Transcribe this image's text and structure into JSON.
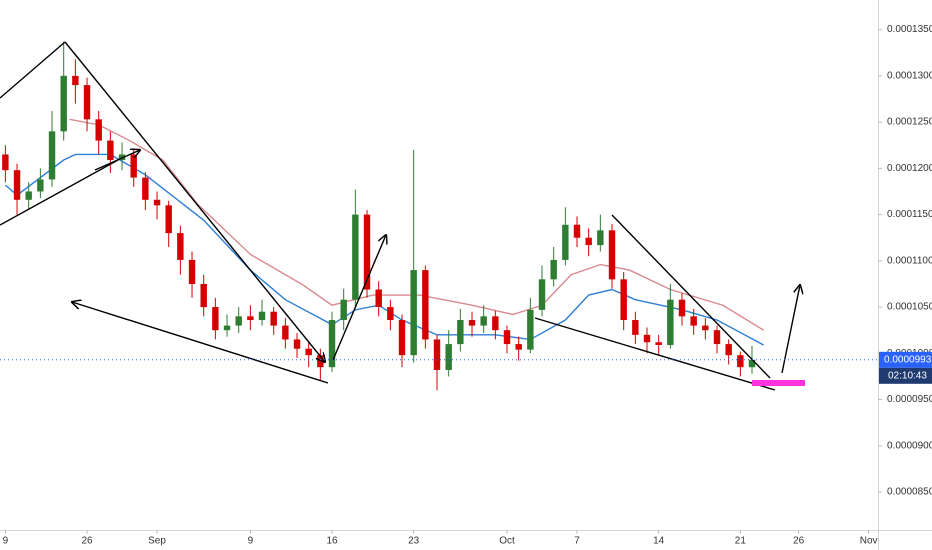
{
  "chart_data": {
    "type": "candlestick",
    "x": [
      0,
      1,
      2,
      3,
      4,
      5,
      6,
      7,
      8,
      9,
      10,
      11,
      12,
      13,
      14,
      15,
      16,
      17,
      18,
      19,
      20,
      21,
      22,
      23,
      24,
      25,
      26,
      27,
      28,
      29,
      30,
      31,
      32,
      33,
      34,
      35,
      36,
      37,
      38,
      39,
      40,
      41,
      42,
      43,
      44,
      45,
      46,
      47,
      48,
      49,
      50,
      51,
      52,
      53,
      54,
      55,
      56,
      57,
      58,
      59,
      60,
      61,
      62,
      63,
      64
    ],
    "open": [
      0.0001215,
      0.0001198,
      0.0001166,
      0.0001175,
      0.0001188,
      0.000124,
      0.00013,
      0.000129,
      0.0001253,
      0.000123,
      0.0001209,
      0.0001215,
      0.000119,
      0.0001166,
      0.000116,
      0.000113,
      0.0001101,
      0.0001075,
      0.000105,
      0.0001025,
      0.000103,
      0.000104,
      0.0001036,
      0.0001045,
      0.000103,
      0.0001015,
      0.0001005,
      9.98e-05,
      9.85e-05,
      0.0001036,
      0.0001058,
      0.000115,
      0.0001069,
      0.000105,
      0.0001036,
      9.98e-05,
      0.000109,
      0.0001015,
      9.82e-05,
      0.000101,
      0.0001036,
      0.000103,
      0.000104,
      0.0001025,
      0.000101,
      0.0001004,
      0.0001047,
      0.000108,
      0.0001101,
      0.0001139,
      0.0001125,
      0.0001117,
      0.0001133,
      0.000108,
      0.0001036,
      0.000102,
      0.0001012,
      0.0001009,
      0.0001058,
      0.000104,
      0.000103,
      0.0001025,
      0.000101,
      9.98e-05,
      9.85e-05
    ],
    "high": [
      0.0001225,
      0.0001205,
      0.0001185,
      0.00012,
      0.0001262,
      0.0001337,
      0.0001318,
      0.0001298,
      0.0001262,
      0.000124,
      0.0001228,
      0.000122,
      0.0001196,
      0.0001175,
      0.0001165,
      0.0001138,
      0.000111,
      0.0001085,
      0.000106,
      0.0001042,
      0.000105,
      0.0001052,
      0.0001058,
      0.000105,
      0.0001038,
      0.0001022,
      0.0001012,
      0.0001005,
      0.0001045,
      0.000107,
      0.0001177,
      0.0001155,
      0.0001078,
      0.0001058,
      0.0001042,
      0.000122,
      0.0001095,
      0.000102,
      0.0001025,
      0.0001048,
      0.0001045,
      0.0001052,
      0.0001046,
      0.000103,
      0.0001018,
      0.000106,
      0.0001095,
      0.0001115,
      0.0001158,
      0.0001148,
      0.0001135,
      0.000115,
      0.000114,
      0.0001088,
      0.0001045,
      0.0001028,
      0.000102,
      0.0001075,
      0.0001065,
      0.0001048,
      0.0001038,
      0.000103,
      0.0001015,
      0.0001002,
      0.0001008
    ],
    "low": [
      0.0001185,
      0.000115,
      0.0001155,
      0.0001168,
      0.000118,
      0.000123,
      0.000127,
      0.000124,
      0.0001215,
      0.0001195,
      0.0001198,
      0.000118,
      0.0001155,
      0.0001145,
      0.0001115,
      0.0001085,
      0.000106,
      0.000104,
      0.0001015,
      0.0001018,
      0.0001022,
      0.0001025,
      0.000103,
      0.000102,
      0.0001005,
      9.95e-05,
      9.85e-05,
      9.71e-05,
      9.8e-05,
      0.0001025,
      0.000105,
      0.000106,
      0.000104,
      0.0001025,
      9.85e-05,
      9.9e-05,
      0.0001005,
      9.6e-05,
      9.75e-05,
      0.0001002,
      0.0001018,
      0.0001022,
      0.0001015,
      0.0001,
      9.92e-05,
      0.0001,
      0.000104,
      0.0001072,
      0.0001095,
      0.0001115,
      0.0001105,
      0.000111,
      0.000107,
      0.0001025,
      0.000101,
      0.0001,
      9.98e-05,
      0.0001005,
      0.000103,
      0.000102,
      0.0001015,
      0.0001,
      9.88e-05,
      9.75e-05,
      9.78e-05
    ],
    "close": [
      0.0001198,
      0.0001166,
      0.0001175,
      0.0001188,
      0.000124,
      0.00013,
      0.000129,
      0.0001253,
      0.000123,
      0.0001209,
      0.0001215,
      0.000119,
      0.0001166,
      0.000116,
      0.000113,
      0.0001101,
      0.0001075,
      0.000105,
      0.0001025,
      0.000103,
      0.000104,
      0.0001036,
      0.0001045,
      0.000103,
      0.0001015,
      0.0001005,
      9.98e-05,
      9.85e-05,
      0.0001036,
      0.0001058,
      0.000115,
      0.0001069,
      0.000105,
      0.0001036,
      9.98e-05,
      0.000109,
      0.0001015,
      9.82e-05,
      0.000101,
      0.0001036,
      0.000103,
      0.000104,
      0.0001025,
      0.000101,
      0.0001004,
      0.0001047,
      0.000108,
      0.0001101,
      0.0001139,
      0.0001125,
      0.0001117,
      0.0001133,
      0.000108,
      0.0001036,
      0.000102,
      0.0001012,
      0.0001009,
      0.0001058,
      0.000104,
      0.000103,
      0.0001025,
      0.000101,
      9.98e-05,
      9.85e-05,
      9.93e-05
    ],
    "up_color": "#2e7d32",
    "down_color": "#d50000",
    "moving_averages": [
      {
        "color": "#d98a8f",
        "x": [
          5.5,
          8,
          10.5,
          13.5,
          16.5,
          21,
          25.5,
          28,
          31.5,
          35.5,
          40,
          43.5,
          46,
          48.5,
          51,
          53.5,
          57,
          61.5,
          65
        ],
        "values": [
          0.0001253,
          0.0001247,
          0.0001231,
          0.0001209,
          0.0001161,
          0.0001107,
          0.0001074,
          0.0001052,
          0.0001063,
          0.0001063,
          0.0001052,
          0.0001042,
          0.0001052,
          0.0001085,
          0.0001096,
          0.000109,
          0.0001069,
          0.0001052,
          0.0001025
        ]
      },
      {
        "color": "#2f7fd6",
        "x": [
          0,
          1,
          5,
          6,
          9,
          12,
          17,
          21,
          24,
          28,
          30,
          32,
          34,
          37,
          42,
          45,
          48,
          50,
          52,
          54,
          58,
          61,
          65
        ],
        "values": [
          0.0001182,
          0.0001171,
          0.0001209,
          0.0001215,
          0.0001215,
          0.0001193,
          0.0001144,
          0.000109,
          0.0001058,
          0.0001031,
          0.0001047,
          0.0001052,
          0.0001036,
          0.000102,
          0.000102,
          0.0001015,
          0.0001036,
          0.0001063,
          0.0001069,
          0.0001058,
          0.0001047,
          0.0001036,
          0.0001009
        ]
      }
    ],
    "xlim": [
      -0.46,
      74.8
    ],
    "xticks": [
      {
        "value": 0,
        "label": "9"
      },
      {
        "value": 7,
        "label": "26"
      },
      {
        "value": 13,
        "label": "Sep"
      },
      {
        "value": 21,
        "label": "9"
      },
      {
        "value": 28,
        "label": "16"
      },
      {
        "value": 35,
        "label": "23"
      },
      {
        "value": 43,
        "label": "Oct"
      },
      {
        "value": 49,
        "label": "7"
      },
      {
        "value": 56,
        "label": "14"
      },
      {
        "value": 63,
        "label": "21"
      },
      {
        "value": 68,
        "label": "26"
      },
      {
        "value": 74,
        "label": "Nov"
      }
    ],
    "ylim": [
      8.09e-05,
      0.0001382
    ],
    "yticks": [
      {
        "value": 8.5e-05,
        "label": "0.0000850"
      },
      {
        "value": 9e-05,
        "label": "0.0000900"
      },
      {
        "value": 9.5e-05,
        "label": "0.0000950"
      },
      {
        "value": 0.0001,
        "label": "0.0001000"
      },
      {
        "value": 0.000105,
        "label": "0.0001050"
      },
      {
        "value": 0.00011,
        "label": "0.0001100"
      },
      {
        "value": 0.000115,
        "label": "0.0001150"
      },
      {
        "value": 0.00012,
        "label": "0.0001200"
      },
      {
        "value": 0.000125,
        "label": "0.0001250"
      },
      {
        "value": 0.00013,
        "label": "0.0001300"
      },
      {
        "value": 0.000135,
        "label": "0.0001350"
      }
    ],
    "grid": false,
    "last_price": {
      "value": 9.93e-05,
      "label": "0.0000993"
    },
    "countdown": "02:10:43"
  }
}
